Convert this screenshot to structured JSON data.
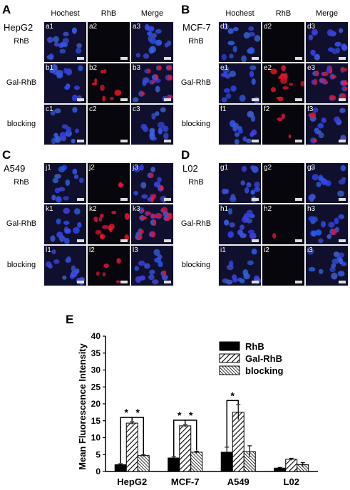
{
  "panels": [
    {
      "letter": "A",
      "cell_line": "HepG2",
      "columns": [
        "Hochest",
        "RhB",
        "Merge"
      ],
      "rows": [
        {
          "label": "RhB",
          "tiles": [
            "a1",
            "a2",
            "a3"
          ],
          "red": 0.0
        },
        {
          "label": "Gal-RhB",
          "tiles": [
            "b1",
            "b2",
            "b3"
          ],
          "red": 0.6
        },
        {
          "label": "blocking",
          "tiles": [
            "c1",
            "c2",
            "c3"
          ],
          "red": 0.0
        }
      ]
    },
    {
      "letter": "B",
      "cell_line": "MCF-7",
      "columns": [
        "Hochest",
        "RhB",
        "Merge"
      ],
      "rows": [
        {
          "label": "RhB",
          "tiles": [
            "d1",
            "d2",
            "d3"
          ],
          "red": 0.0
        },
        {
          "label": "Gal-RhB",
          "tiles": [
            "e1",
            "e2",
            "e3"
          ],
          "red": 0.9
        },
        {
          "label": "blocking",
          "tiles": [
            "f1",
            "f2",
            "f3"
          ],
          "red": 0.15
        }
      ]
    },
    {
      "letter": "C",
      "cell_line": "A549",
      "columns": [
        "",
        "",
        ""
      ],
      "rows": [
        {
          "label": "RhB",
          "tiles": [
            "j1",
            "j2",
            "j3"
          ],
          "red": 0.15
        },
        {
          "label": "Gal-RhB",
          "tiles": [
            "k1",
            "k2",
            "k3"
          ],
          "red": 1.0
        },
        {
          "label": "blocking",
          "tiles": [
            "l1",
            "l2",
            "l3"
          ],
          "red": 0.2
        }
      ]
    },
    {
      "letter": "D",
      "cell_line": "L02",
      "columns": [
        "",
        "",
        ""
      ],
      "rows": [
        {
          "label": "RhB",
          "tiles": [
            "g1",
            "g2",
            "g3"
          ],
          "red": 0.0
        },
        {
          "label": "Gal-RhB",
          "tiles": [
            "h1",
            "h2",
            "h3"
          ],
          "red": 0.05
        },
        {
          "label": "blocking",
          "tiles": [
            "i1",
            "i2",
            "i3"
          ],
          "red": 0.0
        }
      ]
    }
  ],
  "chart_letter": "E",
  "chart_data": {
    "type": "bar",
    "categories": [
      "HepG2",
      "MCF-7",
      "A549",
      "L02"
    ],
    "series": [
      {
        "name": "RhB",
        "values": [
          2.0,
          4.0,
          5.7,
          1.0
        ],
        "errors": [
          0.3,
          0.4,
          1.5,
          0.2
        ],
        "fill": "#000000"
      },
      {
        "name": "Gal-RhB",
        "values": [
          14.3,
          13.5,
          17.5,
          3.6
        ],
        "errors": [
          0.4,
          0.4,
          2.2,
          0.3
        ],
        "fill": "diagonal-hatch"
      },
      {
        "name": "blocking",
        "values": [
          4.7,
          5.7,
          5.9,
          2.0
        ],
        "errors": [
          0.3,
          0.3,
          1.7,
          0.6
        ],
        "fill": "dense-hatch"
      }
    ],
    "ylabel": "Mean Fluorescence Intensity",
    "ylim": [
      0,
      40
    ],
    "yticks": [
      "0",
      "5",
      "10",
      "15",
      "20",
      "25",
      "30",
      "35",
      "40"
    ],
    "legend_position": "top-right",
    "significance_marker": "*",
    "brackets": [
      {
        "category": "HepG2",
        "pair": [
          "RhB",
          "Gal-RhB"
        ]
      },
      {
        "category": "HepG2",
        "pair": [
          "Gal-RhB",
          "blocking"
        ]
      },
      {
        "category": "MCF-7",
        "pair": [
          "RhB",
          "Gal-RhB"
        ]
      },
      {
        "category": "MCF-7",
        "pair": [
          "Gal-RhB",
          "blocking"
        ]
      },
      {
        "category": "A549",
        "pair": [
          "RhB",
          "Gal-RhB"
        ]
      }
    ]
  }
}
